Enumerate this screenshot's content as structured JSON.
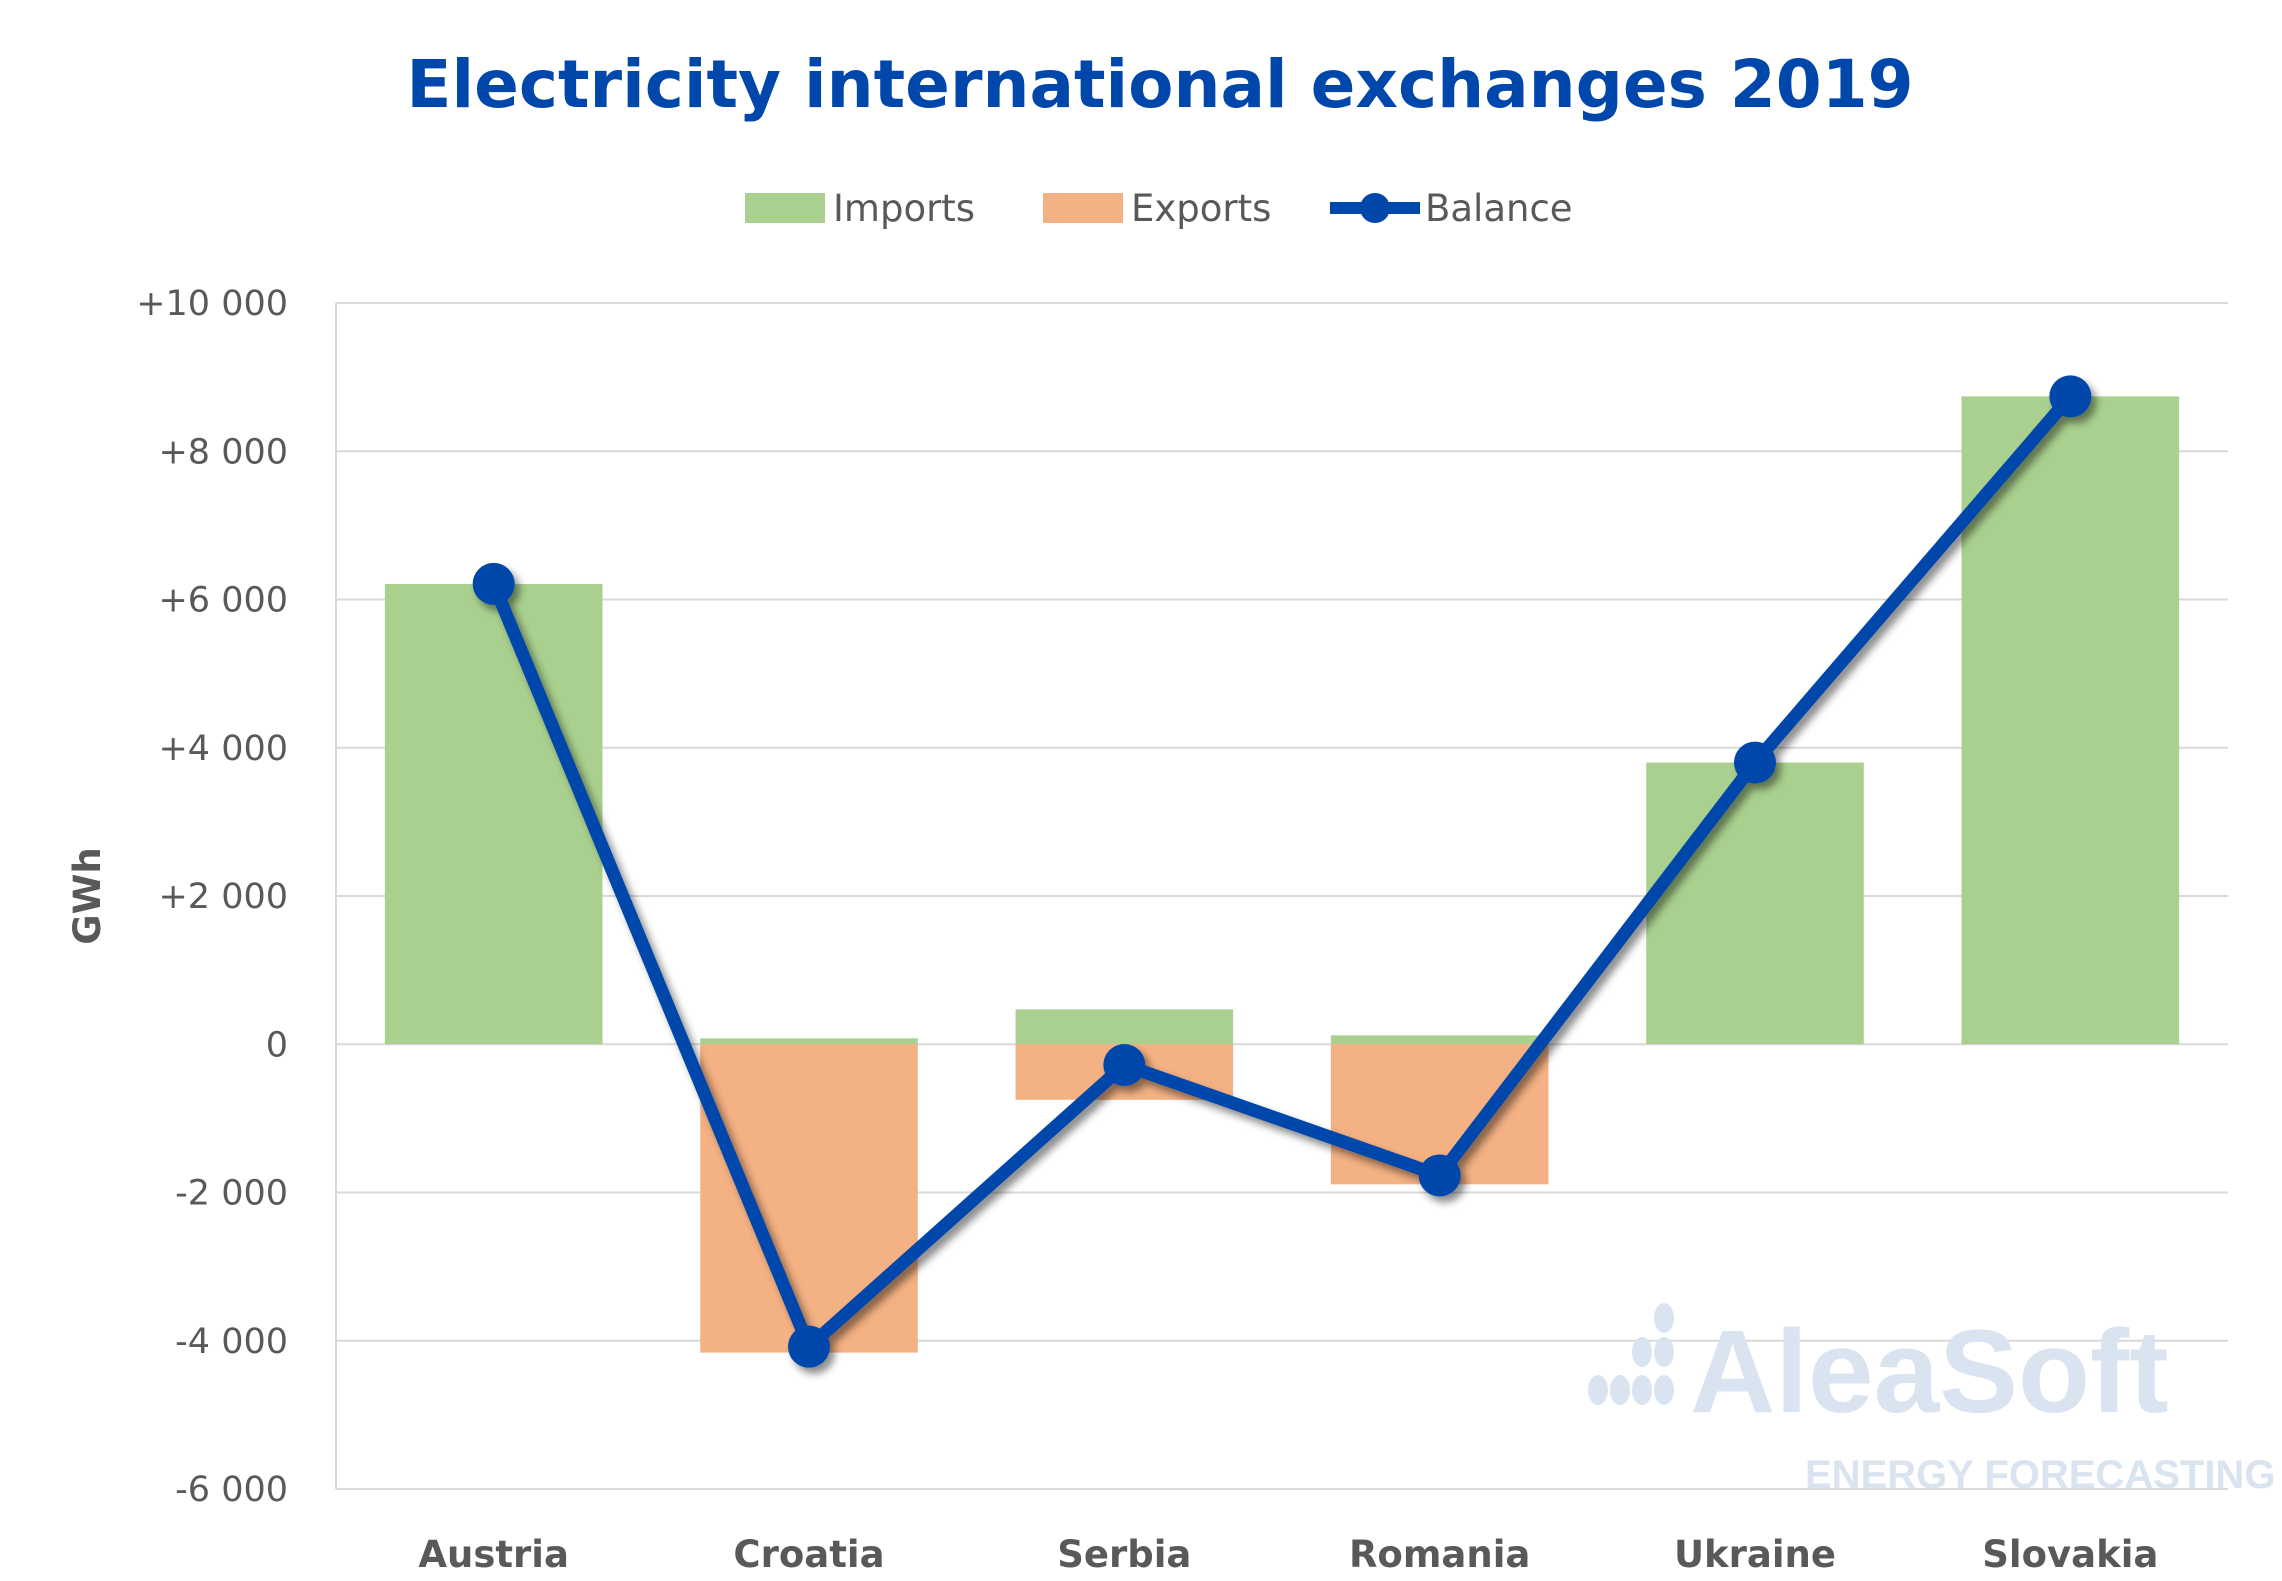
{
  "chart_data": {
    "type": "bar",
    "title": "Electricity international exchanges 2019",
    "xlabel": "",
    "ylabel": "GWh",
    "ylim": [
      -6000,
      10000
    ],
    "yticks": [
      10000,
      8000,
      6000,
      4000,
      2000,
      0,
      -2000,
      -4000,
      -6000
    ],
    "ytick_labels": [
      "+10 000",
      "+8 000",
      "+6 000",
      "+4 000",
      "+2 000",
      "0",
      "-2 000",
      "-4 000",
      "-6 000"
    ],
    "grid": true,
    "legend_position": "top",
    "categories": [
      "Austria",
      "Croatia",
      "Serbia",
      "Romania",
      "Ukraine",
      "Slovakia"
    ],
    "series": [
      {
        "name": "Imports",
        "kind": "bar",
        "color": "#A9D08E",
        "values": [
          6210,
          80,
          470,
          120,
          3800,
          8740
        ]
      },
      {
        "name": "Exports",
        "kind": "bar",
        "color": "#F4B183",
        "values": [
          0,
          -4160,
          -750,
          -1890,
          0,
          0
        ]
      },
      {
        "name": "Balance",
        "kind": "line",
        "color": "#0047AB",
        "values": [
          6210,
          -4080,
          -280,
          -1770,
          3800,
          8740
        ]
      }
    ]
  },
  "watermark": {
    "logo_text": "AleaSoft",
    "logo_subtext": "ENERGY FORECASTING"
  }
}
